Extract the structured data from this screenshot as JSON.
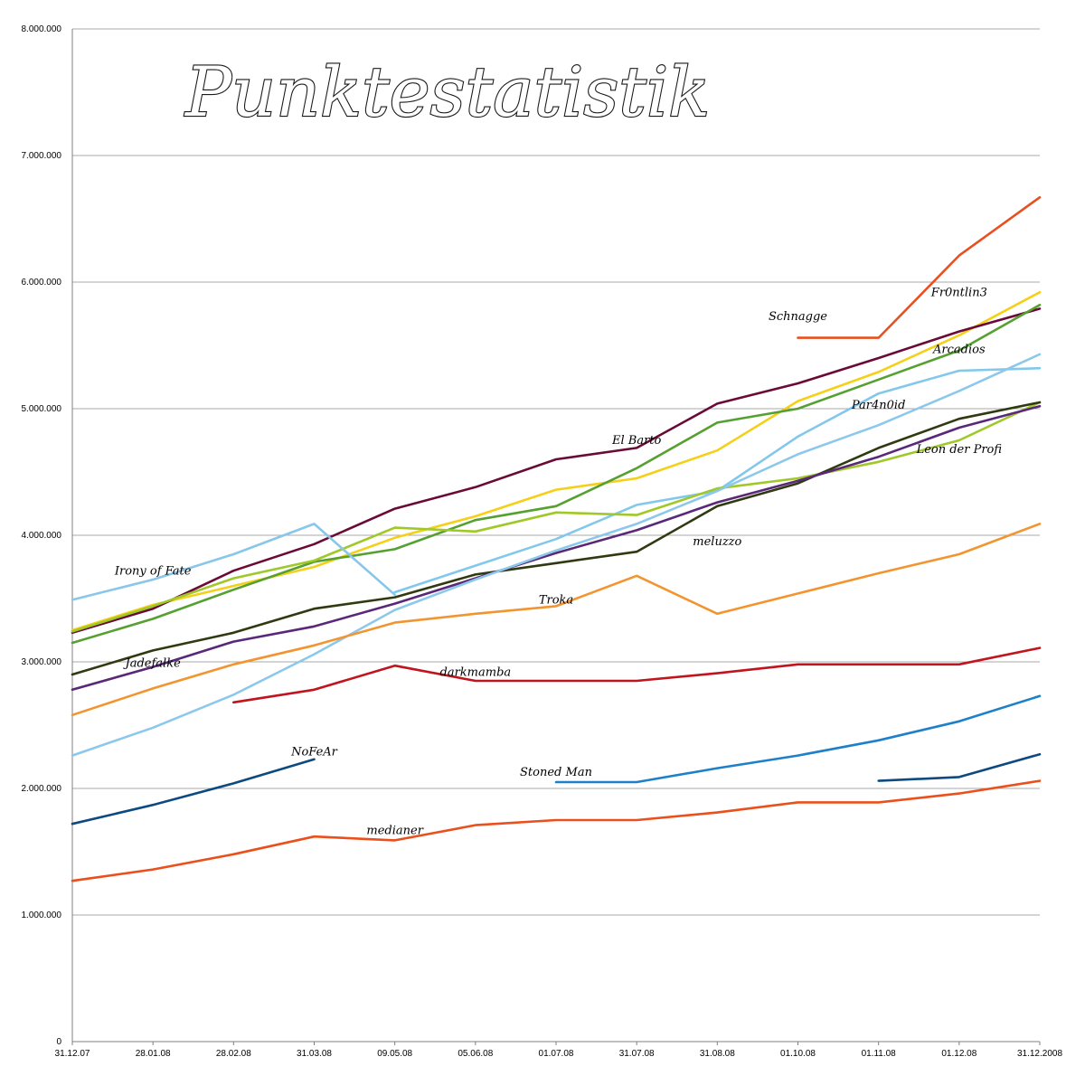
{
  "chart_data": {
    "type": "line",
    "title": "Punktestatistik",
    "xlabel": "",
    "ylabel": "",
    "ylim": [
      0,
      8000000
    ],
    "grid": true,
    "legend": "inline labels",
    "y_ticks": [
      0,
      1000000,
      2000000,
      3000000,
      4000000,
      5000000,
      6000000,
      7000000,
      8000000
    ],
    "y_tick_labels": [
      "0",
      "1.000.000",
      "2.000.000",
      "3.000.000",
      "4.000.000",
      "5.000.000",
      "6.000.000",
      "7.000.000",
      "8.000.000"
    ],
    "categories": [
      "31.12.07",
      "28.01.08",
      "28.02.08",
      "31.03.08",
      "09.05.08",
      "05.06.08",
      "01.07.08",
      "31.07.08",
      "31.08.08",
      "01.10.08",
      "01.11.08",
      "01.12.08",
      "31.12.2008"
    ],
    "series": [
      {
        "name": "Schnagge",
        "color": "#e8501f",
        "values": [
          null,
          null,
          null,
          null,
          null,
          null,
          null,
          null,
          null,
          5560000,
          5560000,
          6210000,
          6670000
        ]
      },
      {
        "name": "Fr0ntlin3",
        "color": "#f4d018",
        "values": [
          3250000,
          3450000,
          3600000,
          3750000,
          3980000,
          4150000,
          4360000,
          4450000,
          4670000,
          5060000,
          5290000,
          5580000,
          5920000
        ]
      },
      {
        "name": "El Barto",
        "color": "#6a0a36",
        "values": [
          3230000,
          3420000,
          3720000,
          3930000,
          4210000,
          4380000,
          4600000,
          4690000,
          5040000,
          5200000,
          5400000,
          5610000,
          5790000
        ]
      },
      {
        "name": "Arcadios",
        "color": "#55a030",
        "values": [
          3150000,
          3340000,
          3570000,
          3790000,
          3890000,
          4120000,
          4230000,
          4530000,
          4890000,
          5000000,
          5230000,
          5460000,
          5820000
        ]
      },
      {
        "name": "Par4n0id",
        "color": "#82c8ec",
        "values": [
          null,
          null,
          null,
          null,
          3550000,
          3760000,
          3970000,
          4240000,
          4350000,
          4780000,
          5120000,
          5300000,
          5320000
        ]
      },
      {
        "name": "Leon der Profi",
        "color": "#a0c828",
        "values": [
          3240000,
          3440000,
          3660000,
          3800000,
          4060000,
          4030000,
          4180000,
          4160000,
          4370000,
          4450000,
          4580000,
          4750000,
          5050000
        ]
      },
      {
        "name": "meluzzo",
        "color": "#303a10",
        "values": [
          2900000,
          3090000,
          3230000,
          3420000,
          3510000,
          3690000,
          3780000,
          3870000,
          4230000,
          4410000,
          4690000,
          4920000,
          5050000
        ]
      },
      {
        "name": "Jadefalke",
        "color": "#5a2878",
        "values": [
          2780000,
          2960000,
          3160000,
          3280000,
          3460000,
          3660000,
          3860000,
          4040000,
          4260000,
          4430000,
          4620000,
          4850000,
          5020000
        ]
      },
      {
        "name": "Irony of Fate",
        "color": "#88c6ea",
        "values": [
          3490000,
          3650000,
          3850000,
          4090000,
          3530000,
          null,
          null,
          null,
          null,
          null,
          null,
          null,
          null
        ]
      },
      {
        "name": "",
        "color": "#8cc8ec",
        "values": [
          2260000,
          2480000,
          2740000,
          3060000,
          3410000,
          3650000,
          3880000,
          4090000,
          4350000,
          4640000,
          4870000,
          5140000,
          5430000
        ]
      },
      {
        "name": "Troka",
        "color": "#f29530",
        "values": [
          2580000,
          2790000,
          2980000,
          3130000,
          3310000,
          3380000,
          3440000,
          3680000,
          3380000,
          3540000,
          3700000,
          3850000,
          4090000
        ]
      },
      {
        "name": "darkmamba",
        "color": "#c0141e",
        "values": [
          null,
          null,
          2680000,
          2780000,
          2970000,
          2850000,
          2850000,
          2850000,
          2910000,
          2980000,
          2980000,
          2980000,
          3110000
        ]
      },
      {
        "name": "Stoned Man",
        "color": "#1e80c8",
        "values": [
          null,
          null,
          null,
          null,
          null,
          null,
          2050000,
          2050000,
          2160000,
          2260000,
          2380000,
          2530000,
          2730000
        ]
      },
      {
        "name": "NoFeAr",
        "color": "#0d4a80",
        "values": [
          1720000,
          1870000,
          2040000,
          2230000,
          null,
          null,
          null,
          null,
          null,
          null,
          null,
          null,
          null
        ]
      },
      {
        "name": "",
        "color": "#0d4a80",
        "values": [
          null,
          null,
          null,
          null,
          null,
          null,
          null,
          null,
          null,
          null,
          2060000,
          2090000,
          2270000
        ]
      },
      {
        "name": "medianer",
        "color": "#ea4f1c",
        "values": [
          1270000,
          1360000,
          1480000,
          1620000,
          1590000,
          1710000,
          1750000,
          1750000,
          1810000,
          1890000,
          1890000,
          1960000,
          2060000
        ]
      }
    ],
    "annotations": [
      {
        "text": "Schnagge",
        "x": "01.10.08",
        "y": 5700000
      },
      {
        "text": "Fr0ntlin3",
        "x": "01.12.08",
        "y": 5890000
      },
      {
        "text": "Arcadios",
        "x": "01.12.08",
        "y": 5440000
      },
      {
        "text": "Par4n0id",
        "x": "01.11.08",
        "y": 5000000
      },
      {
        "text": "El Barto",
        "x": "31.07.08",
        "y": 4720000
      },
      {
        "text": "Leon der Profi",
        "x": "01.12.08",
        "y": 4650000
      },
      {
        "text": "meluzzo",
        "x": "31.08.08",
        "y": 3920000
      },
      {
        "text": "Irony of Fate",
        "x": "28.01.08",
        "y": 3690000
      },
      {
        "text": "Troka",
        "x": "01.07.08",
        "y": 3460000
      },
      {
        "text": "Jadefalke",
        "x": "28.01.08",
        "y": 2960000
      },
      {
        "text": "darkmamba",
        "x": "05.06.08",
        "y": 2890000
      },
      {
        "text": "NoFeAr",
        "x": "31.03.08",
        "y": 2260000
      },
      {
        "text": "Stoned Man",
        "x": "01.07.08",
        "y": 2100000
      },
      {
        "text": "medianer",
        "x": "09.05.08",
        "y": 1640000
      }
    ]
  }
}
